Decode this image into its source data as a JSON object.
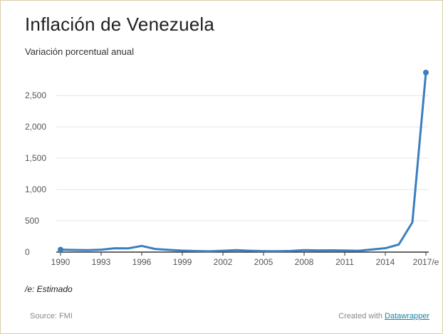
{
  "header": {
    "title": "Inflación de Venezuela",
    "subtitle": "Variación porcentual anual"
  },
  "footer": {
    "note": "/e: Estimado",
    "source": "Source: FMI",
    "credit_prefix": "Created with ",
    "credit_link": "Datawrapper"
  },
  "colors": {
    "line": "#3a7fbd",
    "grid": "#e4e4e4",
    "baseline": "#333333",
    "tick_text": "#555555",
    "link": "#1d81a2"
  },
  "chart_data": {
    "type": "line",
    "title": "Inflación de Venezuela",
    "subtitle": "Variación porcentual anual",
    "xlabel": "",
    "ylabel": "",
    "ylim": [
      0,
      2900
    ],
    "xlim": [
      1990,
      2017
    ],
    "grid": true,
    "legend": "none",
    "y_ticks": [
      0,
      500,
      1000,
      1500,
      2000,
      2500
    ],
    "y_tick_labels": [
      "0",
      "500",
      "1,000",
      "1,500",
      "2,000",
      "2,500"
    ],
    "x_ticks": [
      1990,
      1993,
      1996,
      1999,
      2002,
      2005,
      2008,
      2011,
      2014,
      2017
    ],
    "x_tick_labels": [
      "1990",
      "1993",
      "1996",
      "1999",
      "2002",
      "2005",
      "2008",
      "2011",
      "2014",
      "2017/e"
    ],
    "series": [
      {
        "x": [
          1990,
          1991,
          1992,
          1993,
          1994,
          1995,
          1996,
          1997,
          1998,
          1999,
          2000,
          2001,
          2002,
          2003,
          2004,
          2005,
          2006,
          2007,
          2008,
          2009,
          2010,
          2011,
          2012,
          2013,
          2014,
          2015,
          2016,
          2017
        ],
        "values": [
          40,
          34,
          31,
          38,
          61,
          60,
          99,
          50,
          36,
          24,
          17,
          13,
          22,
          31,
          22,
          16,
          14,
          19,
          31,
          27,
          28,
          26,
          21,
          41,
          62,
          122,
          475,
          2868
        ]
      }
    ],
    "end_markers": [
      "first",
      "last"
    ]
  }
}
